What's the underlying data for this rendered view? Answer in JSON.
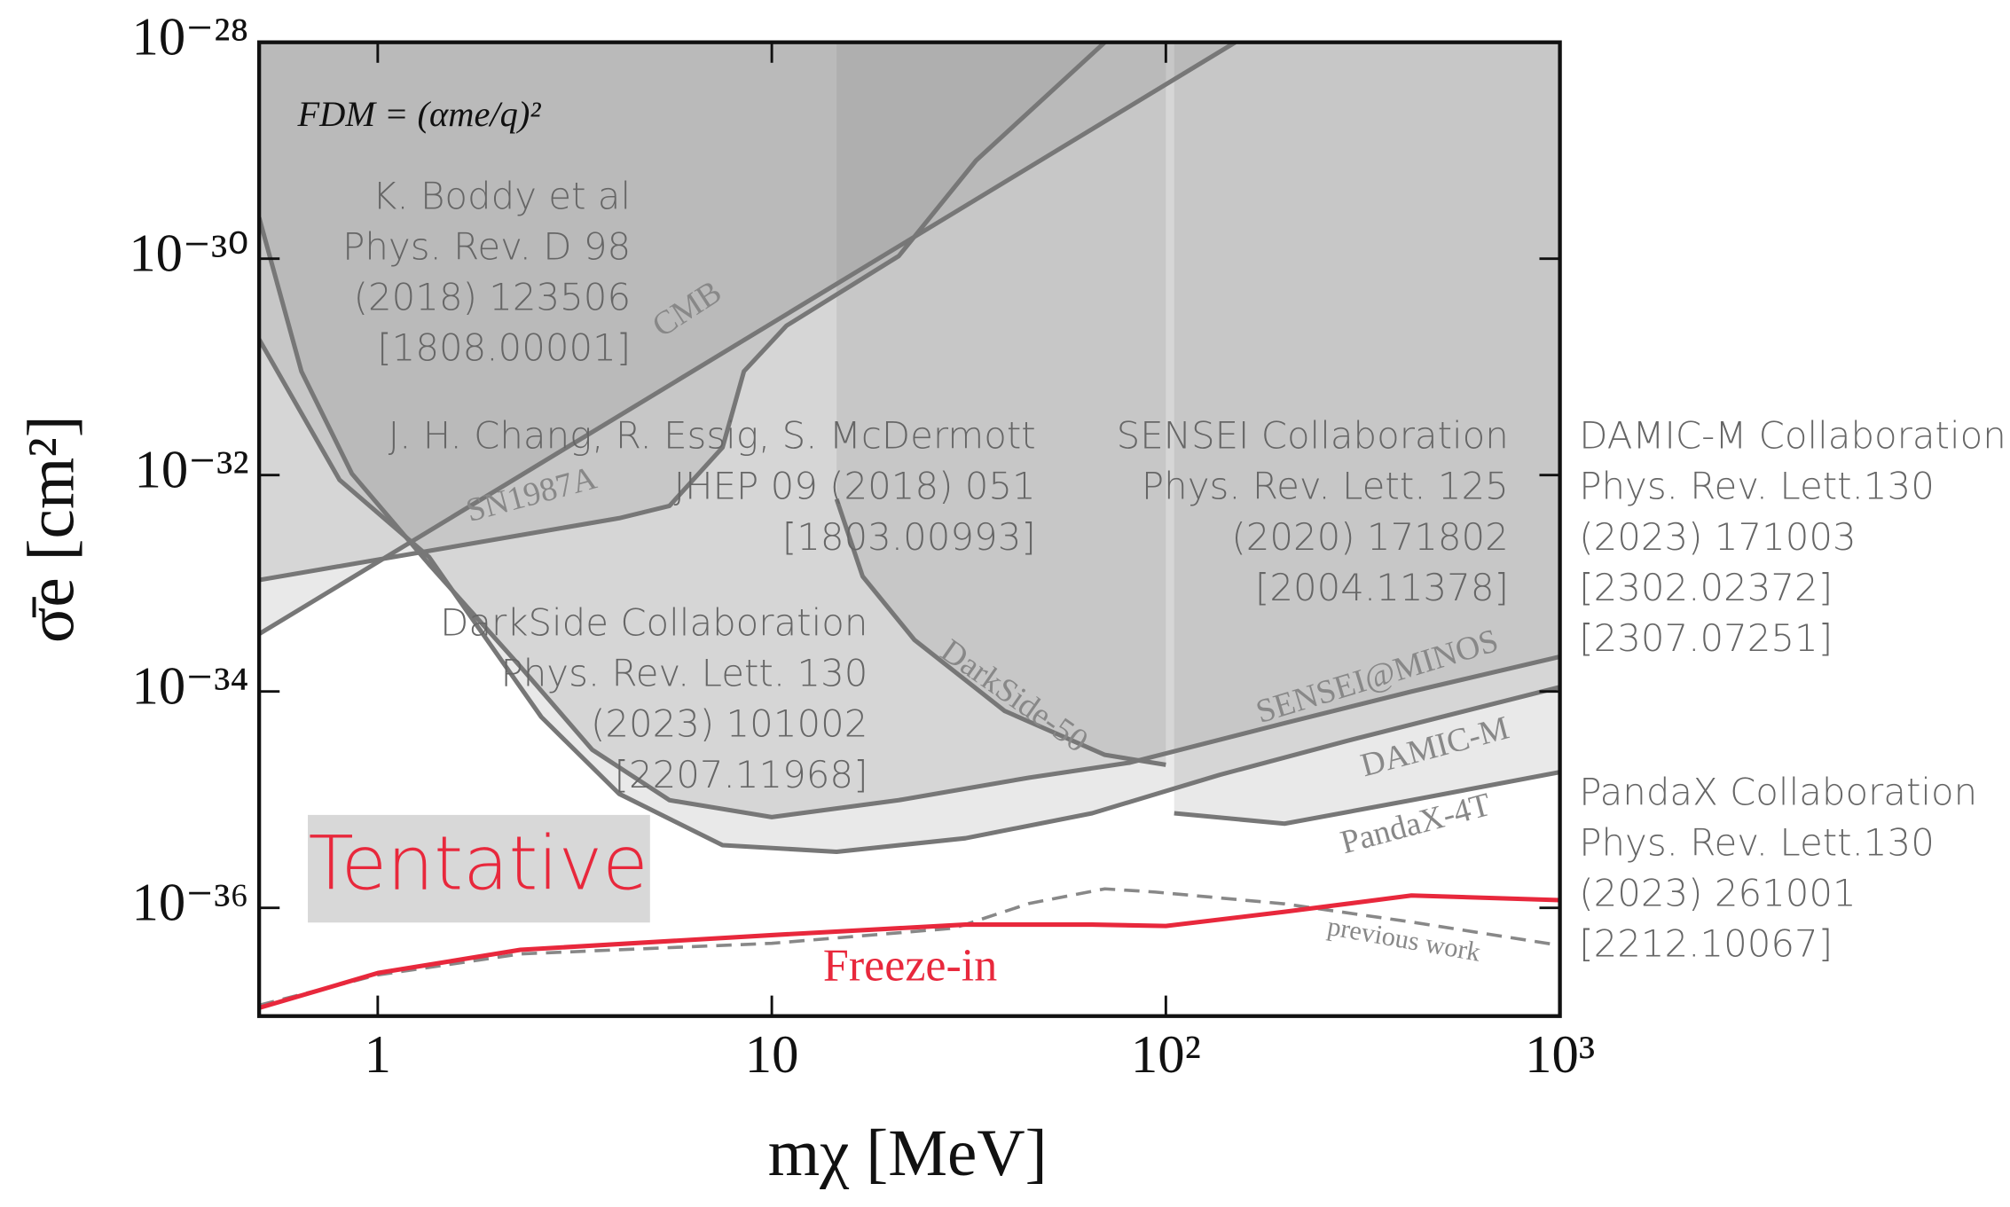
{
  "chart_data": {
    "type": "line",
    "xlabel": "mχ [MeV]",
    "ylabel": "σ̄e [cm²]",
    "xlog": true,
    "ylog": true,
    "xlim": [
      0.5,
      1000
    ],
    "ylim": [
      1e-37,
      1e-28
    ],
    "xticks": [
      1,
      10,
      {
        "value": 100,
        "label": "10²"
      },
      {
        "value": 1000,
        "label": "10³"
      }
    ],
    "yticks": [
      {
        "value": 1e-28,
        "label": "10⁻²⁸"
      },
      {
        "value": 1e-30,
        "label": "10⁻³⁰"
      },
      {
        "value": 1e-32,
        "label": "10⁻³²"
      },
      {
        "value": 1e-34,
        "label": "10⁻³⁴"
      },
      {
        "value": 1e-36,
        "label": "10⁻³⁶"
      }
    ],
    "series": [
      {
        "name": "CMB",
        "color": "#777777",
        "shaded": true,
        "x": [
          0.5,
          150
        ],
        "values": [
          3.4e-34,
          1e-28
        ]
      },
      {
        "name": "SN1987A",
        "color": "#777777",
        "shaded": true,
        "x": [
          0.5,
          4.1,
          5.5,
          7.5,
          8.5,
          10.9,
          21,
          33,
          70
        ],
        "values": [
          1.07e-33,
          4e-33,
          5.2e-33,
          1.8e-32,
          9.1e-32,
          2.4e-31,
          1.06e-30,
          8.1e-30,
          1e-28
        ]
      },
      {
        "name": "DarkSide-50",
        "color": "#777777",
        "shaded": true,
        "x": [
          14.6,
          17,
          23,
          39,
          70,
          100
        ],
        "values": [
          6e-33,
          1.16e-33,
          3e-34,
          6.6e-35,
          2.6e-35,
          2.1e-35
        ]
      },
      {
        "name": "SENSEI@MINOS",
        "color": "#777777",
        "shaded": true,
        "x": [
          0.5,
          0.64,
          0.86,
          1.35,
          2.3,
          3.5,
          5.5,
          10,
          21,
          45,
          81,
          200,
          420,
          1000
        ],
        "values": [
          2.4e-30,
          9.1e-32,
          1.03e-32,
          1.5e-33,
          1.7e-34,
          2.9e-35,
          9.9e-36,
          6.9e-36,
          9.9e-36,
          1.6e-35,
          2.2e-35,
          5.1e-35,
          1e-34,
          2.1e-34
        ]
      },
      {
        "name": "DAMIC-M",
        "color": "#777777",
        "shaded": true,
        "x": [
          0.5,
          0.8,
          1.35,
          1.8,
          2.6,
          4.1,
          7.5,
          14.6,
          31,
          65,
          137,
          288,
          1000
        ],
        "values": [
          1.8e-31,
          9e-33,
          1.75e-33,
          3.9e-34,
          5.8e-35,
          1.13e-35,
          3.8e-36,
          3.3e-36,
          4.4e-36,
          7.5e-36,
          1.7e-35,
          3.5e-35,
          1.1e-34
        ]
      },
      {
        "name": "PandaX-4T",
        "color": "#777777",
        "shaded": true,
        "x": [
          105,
          200,
          420,
          1000
        ],
        "values": [
          7.5e-36,
          6e-36,
          9.9e-36,
          1.8e-35
        ]
      },
      {
        "name": "previous work",
        "color": "#888888",
        "linestyle": "dashed",
        "x": [
          0.5,
          1,
          2.3,
          10,
          29,
          45,
          70,
          94,
          200,
          420,
          1000
        ],
        "values": [
          1.26e-37,
          2.4e-37,
          3.75e-37,
          4.7e-37,
          6.5e-37,
          1.1e-36,
          1.5e-36,
          1.4e-36,
          1.09e-36,
          7.4e-37,
          4.5e-37
        ]
      },
      {
        "name": "Freeze-in",
        "color": "#e8283c",
        "x": [
          0.5,
          1,
          2.3,
          10,
          31,
          65,
          100,
          200,
          420,
          1000
        ],
        "values": [
          1.19e-37,
          2.5e-37,
          4.1e-37,
          5.6e-37,
          7e-37,
          7e-37,
          6.8e-37,
          9.2e-37,
          1.3e-36,
          1.18e-36
        ]
      }
    ],
    "formula": "FDM = (αme/q)²",
    "watermark": "Tentative",
    "annotations": [
      [
        "K. Boddy et al",
        "Phys. Rev. D 98",
        "(2018) 123506",
        "[1808.00001]"
      ],
      [
        "J. H. Chang, R. Essig, S. McDermott",
        "JHEP 09 (2018) 051",
        "[1803.00993]"
      ],
      [
        "SENSEI Collaboration",
        "Phys. Rev. Lett. 125",
        "(2020) 171802",
        "[2004.11378]"
      ],
      [
        "DAMIC-M Collaboration",
        "Phys. Rev. Lett.130",
        "(2023) 171003",
        "[2302.02372]",
        "[2307.07251]"
      ],
      [
        "DarkSide Collaboration",
        "Phys. Rev. Lett. 130",
        "(2023) 101002",
        "[2207.11968]"
      ],
      [
        "PandaX Collaboration",
        "Phys. Rev. Lett.130",
        "(2023) 261001",
        "[2212.10067]"
      ]
    ]
  }
}
